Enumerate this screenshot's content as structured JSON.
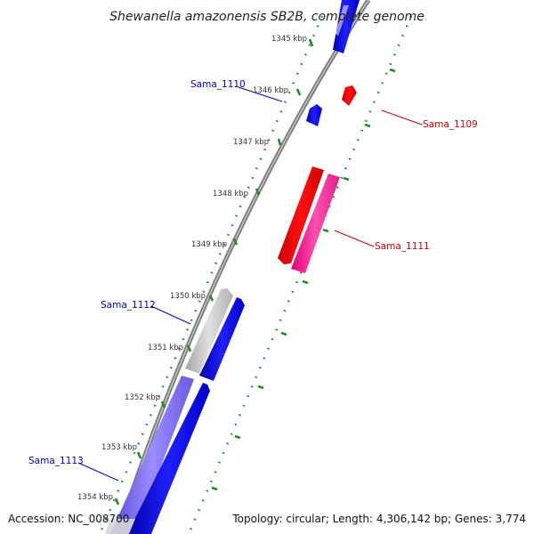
{
  "title": "Shewanella amazonensis SB2B, complete genome",
  "footer": {
    "accession": "Accession: NC_008700",
    "info": "Topology: circular; Length: 4,306,142 bp; Genes: 3,774"
  },
  "ticks": [
    {
      "id": "1345",
      "label": "1345 kbp"
    },
    {
      "id": "1346",
      "label": "1346 kbp"
    },
    {
      "id": "1347",
      "label": "1347 kbp"
    },
    {
      "id": "1348",
      "label": "1348 kbp"
    },
    {
      "id": "1349",
      "label": "1349 kbp"
    },
    {
      "id": "1350",
      "label": "1350 kbp"
    },
    {
      "id": "1351",
      "label": "1351 kbp"
    },
    {
      "id": "1352",
      "label": "1352 kbp"
    },
    {
      "id": "1353",
      "label": "1353 kbp"
    },
    {
      "id": "1354",
      "label": "1354 kbp"
    }
  ],
  "genes": [
    {
      "id": "sama_1110",
      "label": "Sama_1110",
      "color": "#0000cc"
    },
    {
      "id": "sama_1109",
      "label": "Sama_1109",
      "color": "#cc0000"
    },
    {
      "id": "sama_1111",
      "label": "Sama_1111",
      "color": "#cc0000"
    },
    {
      "id": "sama_1112",
      "label": "Sama_1112",
      "color": "#0000cc"
    },
    {
      "id": "sama_1113",
      "label": "Sama_1113",
      "color": "#0000cc"
    }
  ],
  "colors": {
    "backbone": "#808080",
    "tick": "#228b22",
    "forward_cds": "#0000ff",
    "reverse_cds": "#ff0000",
    "reverse_feature": "#ff3399",
    "gray_feature": "#b3b3b3",
    "purple_feature": "#7b68ee"
  }
}
